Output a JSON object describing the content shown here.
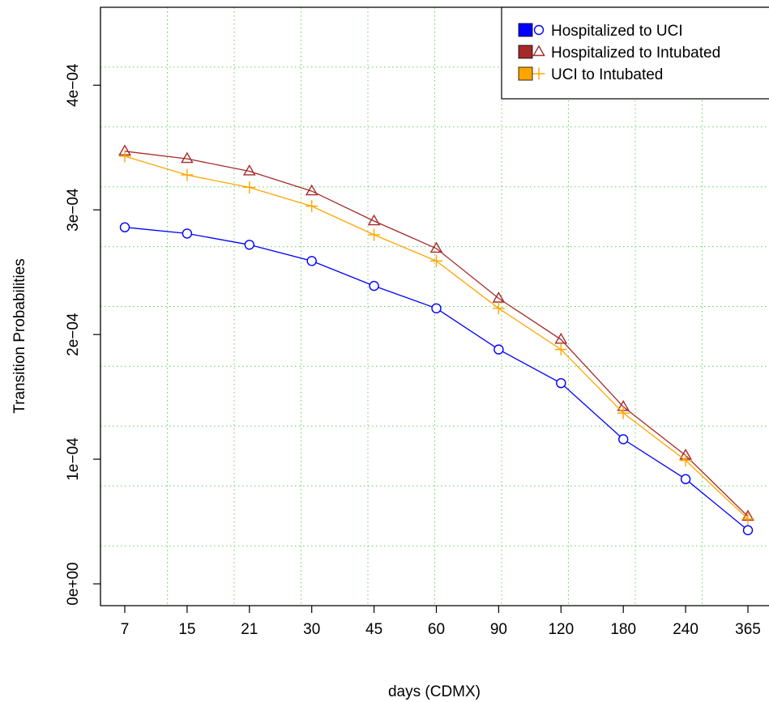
{
  "chart_data": {
    "type": "line",
    "title": "",
    "xlabel": "days (CDMX)",
    "ylabel": "Transition Probabilities",
    "categories": [
      "7",
      "15",
      "21",
      "30",
      "45",
      "60",
      "90",
      "120",
      "180",
      "240",
      "365"
    ],
    "ylim": [
      -1.75e-05,
      0.0004625
    ],
    "yticks": [
      0,
      0.0001,
      0.0002,
      0.0003,
      0.0004
    ],
    "ytick_labels": [
      "0e+00",
      "1e−04",
      "2e−04",
      "3e−04",
      "4e−04"
    ],
    "grid": true,
    "legend_position": "top-right",
    "series": [
      {
        "name": "Hospitalized to UCI",
        "color": "#0000ff",
        "marker": "circle",
        "values": [
          0.000286,
          0.000281,
          0.000272,
          0.000259,
          0.000239,
          0.000221,
          0.000188,
          0.000161,
          0.000116,
          8.4e-05,
          4.3e-05
        ]
      },
      {
        "name": "Hospitalized to Intubated",
        "color": "#a52a2a",
        "marker": "triangle",
        "values": [
          0.000347,
          0.000341,
          0.000331,
          0.000315,
          0.000291,
          0.000269,
          0.000229,
          0.000196,
          0.000142,
          0.000103,
          5.4e-05
        ]
      },
      {
        "name": "UCI to Intubated",
        "color": "#ffa500",
        "marker": "plus",
        "values": [
          0.000343,
          0.000328,
          0.000318,
          0.000303,
          0.00028,
          0.000259,
          0.000221,
          0.000188,
          0.000137,
          9.9e-05,
          5.2e-05
        ]
      }
    ]
  }
}
